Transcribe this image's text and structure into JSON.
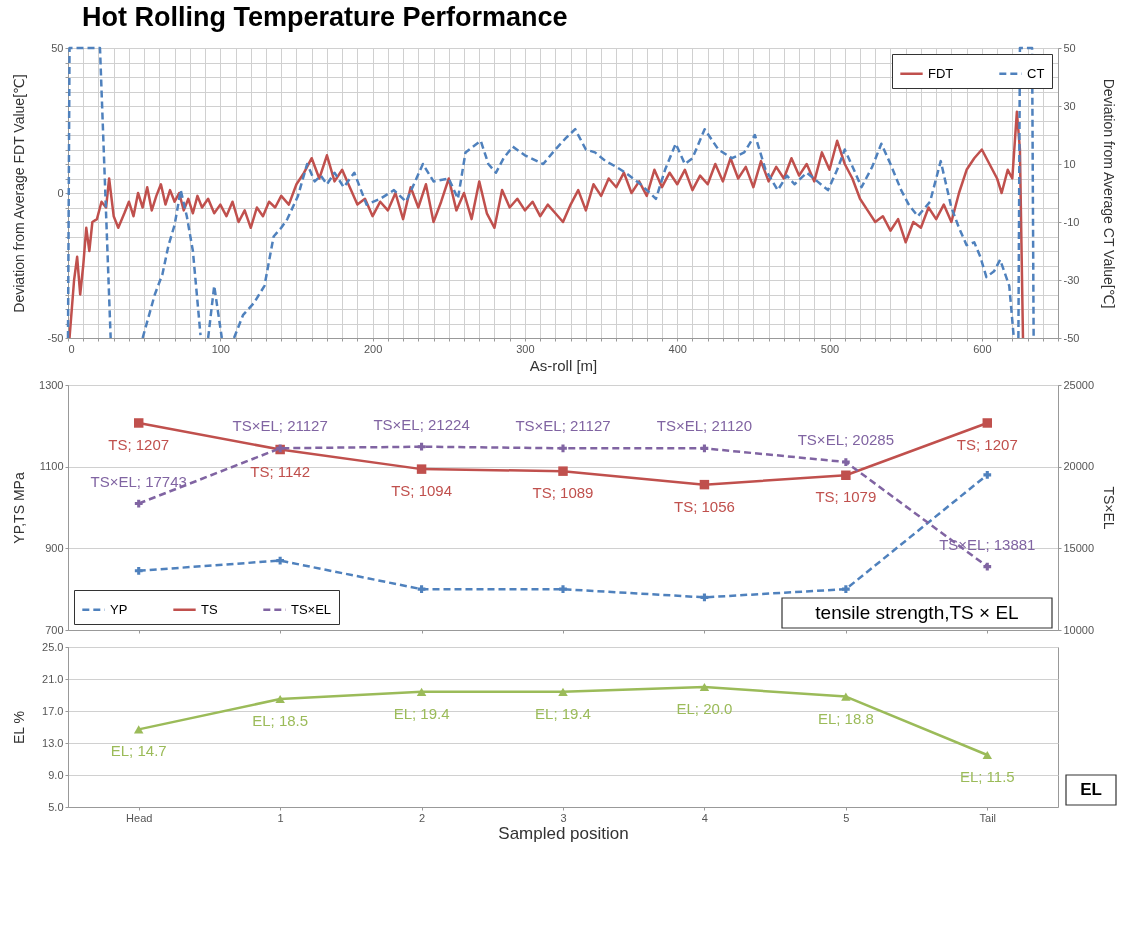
{
  "chart_data": [
    {
      "type": "line",
      "title": "Hot Rolling Temperature Performance",
      "xlabel": "As-roll [m]",
      "ylabel": "Deviation from Average FDT Value[℃]",
      "y2label": "Deviation from Average CT Value[℃]",
      "xlim": [
        0,
        650
      ],
      "ylim": [
        -50,
        50
      ],
      "y2lim": [
        -50,
        50
      ],
      "xticks": [
        0,
        {
          "value": 10,
          "label": null
        },
        {
          "value": 20,
          "label": null
        },
        {
          "value": 30,
          "label": null
        },
        {
          "value": 40,
          "label": null
        },
        {
          "value": 50,
          "label": null
        },
        {
          "value": 60,
          "label": null
        },
        {
          "value": 70,
          "label": null
        },
        {
          "value": 80,
          "label": null
        },
        {
          "value": 90,
          "label": null
        },
        100,
        {
          "value": 110,
          "label": null
        },
        {
          "value": 120,
          "label": null
        },
        {
          "value": 130,
          "label": null
        },
        {
          "value": 140,
          "label": null
        },
        {
          "value": 150,
          "label": null
        },
        {
          "value": 160,
          "label": null
        },
        {
          "value": 170,
          "label": null
        },
        {
          "value": 180,
          "label": null
        },
        {
          "value": 190,
          "label": null
        },
        200,
        {
          "value": 210,
          "label": null
        },
        {
          "value": 220,
          "label": null
        },
        {
          "value": 230,
          "label": null
        },
        {
          "value": 240,
          "label": null
        },
        {
          "value": 250,
          "label": null
        },
        {
          "value": 260,
          "label": null
        },
        {
          "value": 270,
          "label": null
        },
        {
          "value": 280,
          "label": null
        },
        {
          "value": 290,
          "label": null
        },
        300,
        {
          "value": 310,
          "label": null
        },
        {
          "value": 320,
          "label": null
        },
        {
          "value": 330,
          "label": null
        },
        {
          "value": 340,
          "label": null
        },
        {
          "value": 350,
          "label": null
        },
        {
          "value": 360,
          "label": null
        },
        {
          "value": 370,
          "label": null
        },
        {
          "value": 380,
          "label": null
        },
        {
          "value": 390,
          "label": null
        },
        400,
        {
          "value": 410,
          "label": null
        },
        {
          "value": 420,
          "label": null
        },
        {
          "value": 430,
          "label": null
        },
        {
          "value": 440,
          "label": null
        },
        {
          "value": 450,
          "label": null
        },
        {
          "value": 460,
          "label": null
        },
        {
          "value": 470,
          "label": null
        },
        {
          "value": 480,
          "label": null
        },
        {
          "value": 490,
          "label": null
        },
        500,
        {
          "value": 510,
          "label": null
        },
        {
          "value": 520,
          "label": null
        },
        {
          "value": 530,
          "label": null
        },
        {
          "value": 540,
          "label": null
        },
        {
          "value": 550,
          "label": null
        },
        {
          "value": 560,
          "label": null
        },
        {
          "value": 570,
          "label": null
        },
        {
          "value": 580,
          "label": null
        },
        {
          "value": 590,
          "label": null
        },
        600,
        {
          "value": 610,
          "label": null
        },
        {
          "value": 620,
          "label": null
        },
        {
          "value": 630,
          "label": null
        },
        {
          "value": 640,
          "label": null
        },
        {
          "value": 650,
          "label": null
        }
      ],
      "yticks": [
        -50,
        {
          "value": -45,
          "label": null
        },
        {
          "value": -40,
          "label": null
        },
        {
          "value": -35,
          "label": null
        },
        {
          "value": -30,
          "label": null
        },
        {
          "value": -25,
          "label": null
        },
        {
          "value": -20,
          "label": null
        },
        {
          "value": -15,
          "label": null
        },
        {
          "value": -10,
          "label": null
        },
        {
          "value": -5,
          "label": null
        },
        0,
        {
          "value": 5,
          "label": null
        },
        {
          "value": 10,
          "label": null
        },
        {
          "value": 15,
          "label": null
        },
        {
          "value": 20,
          "label": null
        },
        {
          "value": 25,
          "label": null
        },
        {
          "value": 30,
          "label": null
        },
        {
          "value": 35,
          "label": null
        },
        {
          "value": 40,
          "label": null
        },
        {
          "value": 45,
          "label": null
        },
        50
      ],
      "y2ticks": [
        -50,
        -30,
        -10,
        10,
        30,
        50
      ],
      "grid": true,
      "legend": "top right",
      "series": [
        {
          "name": "FDT",
          "color": "#c0504d",
          "line_style": "solid",
          "x": [
            1,
            4,
            6,
            8,
            10,
            12,
            14,
            16,
            19,
            22,
            25,
            27,
            30,
            33,
            37,
            40,
            43,
            46,
            49,
            52,
            55,
            58,
            61,
            64,
            67,
            70,
            73,
            76,
            79,
            82,
            85,
            88,
            92,
            96,
            100,
            104,
            108,
            112,
            116,
            120,
            124,
            128,
            132,
            136,
            140,
            145,
            150,
            155,
            160,
            165,
            170,
            175,
            180,
            185,
            190,
            195,
            200,
            205,
            210,
            215,
            220,
            225,
            230,
            235,
            240,
            245,
            250,
            255,
            260,
            265,
            270,
            275,
            280,
            285,
            290,
            295,
            300,
            305,
            310,
            315,
            320,
            325,
            330,
            335,
            340,
            345,
            350,
            355,
            360,
            365,
            370,
            375,
            380,
            385,
            390,
            395,
            400,
            405,
            410,
            415,
            420,
            425,
            430,
            435,
            440,
            445,
            450,
            455,
            460,
            465,
            470,
            475,
            480,
            485,
            490,
            495,
            500,
            505,
            510,
            515,
            520,
            525,
            530,
            535,
            540,
            545,
            550,
            555,
            560,
            565,
            570,
            575,
            580,
            585,
            590,
            595,
            600,
            605,
            610,
            613,
            617,
            620,
            623,
            625,
            627
          ],
          "values": [
            -50,
            -30,
            -22,
            -35,
            -25,
            -12,
            -20,
            -10,
            -9,
            -3,
            -5,
            5,
            -8,
            -12,
            -7,
            -3,
            -8,
            0,
            -5,
            2,
            -6,
            -1,
            3,
            -4,
            1,
            -3,
            0,
            -6,
            -2,
            -7,
            -1,
            -5,
            -2,
            -7,
            -4,
            -8,
            -3,
            -10,
            -6,
            -12,
            -5,
            -8,
            -3,
            -5,
            -1,
            -4,
            3,
            7,
            12,
            5,
            13,
            4,
            8,
            2,
            -4,
            -2,
            -8,
            -3,
            -6,
            0,
            -9,
            2,
            -5,
            3,
            -10,
            -3,
            5,
            -6,
            0,
            -9,
            4,
            -7,
            -12,
            1,
            -5,
            -2,
            -6,
            -3,
            -8,
            -4,
            -7,
            -10,
            -4,
            1,
            -6,
            3,
            -1,
            5,
            2,
            7,
            0,
            4,
            -1,
            8,
            2,
            7,
            3,
            8,
            1,
            6,
            3,
            10,
            4,
            12,
            5,
            9,
            2,
            11,
            4,
            9,
            5,
            12,
            6,
            10,
            4,
            14,
            8,
            18,
            10,
            5,
            -2,
            -6,
            -10,
            -8,
            -13,
            -9,
            -17,
            -10,
            -12,
            -5,
            -9,
            -4,
            -10,
            0,
            8,
            12,
            15,
            10,
            5,
            0,
            8,
            5,
            28,
            15,
            -50
          ]
        },
        {
          "name": "CT",
          "color": "#4f81bd",
          "line_style": "dashed",
          "axis": "y2",
          "x": [
            0,
            1,
            21,
            28,
            35,
            49,
            57,
            62,
            66,
            70,
            74,
            78,
            82,
            87,
            89,
            92,
            96,
            101,
            105,
            109,
            115,
            122,
            129,
            135,
            140,
            144,
            151,
            157,
            162,
            166,
            170,
            175,
            181,
            188,
            196,
            205,
            214,
            222,
            233,
            240,
            250,
            256,
            261,
            271,
            276,
            281,
            286,
            292,
            300,
            312,
            320,
            327,
            333,
            340,
            346,
            353,
            360,
            366,
            376,
            386,
            392,
            399,
            405,
            410,
            418,
            427,
            436,
            444,
            451,
            458,
            466,
            472,
            477,
            485,
            492,
            499,
            505,
            510,
            516,
            521,
            528,
            534,
            540,
            547,
            552,
            558,
            566,
            573,
            580,
            585,
            590,
            595,
            599,
            603,
            608,
            612,
            618,
            621,
            622,
            624,
            625,
            633,
            634
          ],
          "values": [
            -50,
            50,
            50,
            -50,
            null,
            -50,
            -35,
            -28,
            -18,
            -11,
            1,
            -8,
            -20,
            -49,
            null,
            -50,
            -32,
            -50,
            null,
            -50,
            -42,
            -38,
            -32,
            -15,
            -12,
            -9,
            -1,
            10,
            4,
            6,
            3,
            7,
            2,
            7,
            -4,
            -2,
            1,
            -3,
            10,
            4,
            5,
            -2,
            14,
            18,
            10,
            7,
            12,
            16,
            13,
            10,
            15,
            19,
            22,
            15,
            14,
            11,
            9,
            7,
            3,
            -2,
            8,
            17,
            10,
            12,
            22,
            15,
            12,
            14,
            20,
            8,
            1,
            6,
            3,
            7,
            4,
            1,
            8,
            15,
            8,
            2,
            9,
            17,
            10,
            1,
            -4,
            -8,
            -3,
            11,
            -5,
            -12,
            -18,
            -17,
            -22,
            -29,
            -27,
            -23,
            -32,
            -50,
            null,
            -50,
            50,
            50,
            -50
          ]
        }
      ]
    },
    {
      "type": "line",
      "ylabel": "YP,TS MPa",
      "y2label": "TS×EL",
      "categories": [
        null,
        null,
        null,
        null,
        null,
        null,
        null
      ],
      "ylim": [
        700,
        1300
      ],
      "yticks": [
        700,
        900,
        1100,
        1300
      ],
      "y2lim": [
        10000,
        25000
      ],
      "y2ticks": [
        10000,
        15000,
        20000,
        25000
      ],
      "grid": "y",
      "legend": "bottom left",
      "tick_labels": "y",
      "annotations": [
        "tensile strength,TS × EL"
      ],
      "series": [
        {
          "name": "YP",
          "color": "#4f81bd",
          "line_style": "dashed",
          "marker": "cross",
          "values": [
            845,
            870,
            800,
            800,
            780,
            800,
            1080
          ]
        },
        {
          "name": "TS",
          "color": "#c0504d",
          "line_style": "solid",
          "marker": "square",
          "values": [
            1207,
            1142,
            1094,
            1089,
            1056,
            1079,
            1207
          ],
          "value_labels": [
            "TS; 1207",
            "TS; 1142",
            "TS; 1094",
            "TS; 1089",
            "TS; 1056",
            "TS; 1079",
            "TS; 1207"
          ]
        },
        {
          "name": "TS×EL",
          "color": "#8064a2",
          "line_style": "dashed",
          "marker": "cross",
          "axis": "y2",
          "values": [
            17743,
            21127,
            21224,
            21127,
            21120,
            20285,
            13881
          ],
          "value_labels": [
            "TS×EL; 17743",
            "TS×EL; 21127",
            "TS×EL; 21224",
            "TS×EL; 21127",
            "TS×EL; 21120",
            "TS×EL; 20285",
            "TS×EL; 13881"
          ]
        }
      ]
    },
    {
      "type": "line",
      "xlabel": "Sampled position",
      "ylabel": "EL %",
      "categories": [
        "Head",
        "1",
        "2",
        "3",
        "4",
        "5",
        "Tail"
      ],
      "ylim": [
        5,
        25
      ],
      "yticks": [
        {
          "value": 5,
          "label": "5.0"
        },
        {
          "value": 9,
          "label": "9.0"
        },
        {
          "value": 13,
          "label": "13.0"
        },
        {
          "value": 17,
          "label": "17.0"
        },
        {
          "value": 21,
          "label": "21.0"
        },
        {
          "value": 25,
          "label": "25.0"
        }
      ],
      "grid": "y",
      "annotations": [
        "EL"
      ],
      "series": [
        {
          "color": "#9bbb59",
          "line_style": "solid",
          "marker": "triangle",
          "values": [
            14.7,
            18.5,
            19.4,
            19.4,
            20.0,
            18.8,
            11.5
          ],
          "value_labels": [
            "EL; 14.7",
            "EL; 18.5",
            "EL; 19.4",
            "EL; 19.4",
            "EL; 20.0",
            "EL; 18.8",
            "EL; 11.5"
          ]
        }
      ]
    }
  ]
}
